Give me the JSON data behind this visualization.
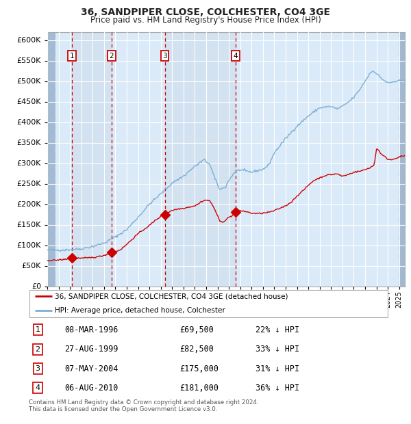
{
  "title1": "36, SANDPIPER CLOSE, COLCHESTER, CO4 3GE",
  "title2": "Price paid vs. HM Land Registry's House Price Index (HPI)",
  "ylim": [
    0,
    620000
  ],
  "yticks": [
    0,
    50000,
    100000,
    150000,
    200000,
    250000,
    300000,
    350000,
    400000,
    450000,
    500000,
    550000,
    600000
  ],
  "plot_bg": "#dbeaf8",
  "grid_color": "#ffffff",
  "red_line_color": "#cc0000",
  "blue_line_color": "#7aafd4",
  "purchases": [
    {
      "date_x": 1996.18,
      "price": 69500,
      "label": "1"
    },
    {
      "date_x": 1999.65,
      "price": 82500,
      "label": "2"
    },
    {
      "date_x": 2004.35,
      "price": 175000,
      "label": "3"
    },
    {
      "date_x": 2010.59,
      "price": 181000,
      "label": "4"
    }
  ],
  "vline_x": [
    1996.18,
    1999.65,
    2004.35,
    2010.59
  ],
  "legend_label_red": "36, SANDPIPER CLOSE, COLCHESTER, CO4 3GE (detached house)",
  "legend_label_blue": "HPI: Average price, detached house, Colchester",
  "table_rows": [
    {
      "num": "1",
      "date": "08-MAR-1996",
      "price": "£69,500",
      "pct": "22% ↓ HPI"
    },
    {
      "num": "2",
      "date": "27-AUG-1999",
      "price": "£82,500",
      "pct": "33% ↓ HPI"
    },
    {
      "num": "3",
      "date": "07-MAY-2004",
      "price": "£175,000",
      "pct": "31% ↓ HPI"
    },
    {
      "num": "4",
      "date": "06-AUG-2010",
      "price": "£181,000",
      "pct": "36% ↓ HPI"
    }
  ],
  "footer": "Contains HM Land Registry data © Crown copyright and database right 2024.\nThis data is licensed under the Open Government Licence v3.0.",
  "xmin": 1994.0,
  "xmax": 2025.5,
  "hpi_anchors": [
    [
      1994.0,
      88000
    ],
    [
      1995.0,
      88000
    ],
    [
      1996.0,
      89000
    ],
    [
      1997.0,
      91000
    ],
    [
      1998.0,
      97000
    ],
    [
      1999.0,
      105000
    ],
    [
      2000.0,
      120000
    ],
    [
      2001.0,
      138000
    ],
    [
      2002.0,
      168000
    ],
    [
      2003.0,
      200000
    ],
    [
      2004.0,
      225000
    ],
    [
      2004.5,
      238000
    ],
    [
      2005.0,
      252000
    ],
    [
      2006.0,
      268000
    ],
    [
      2007.0,
      292000
    ],
    [
      2007.8,
      308000
    ],
    [
      2008.3,
      298000
    ],
    [
      2008.8,
      260000
    ],
    [
      2009.2,
      235000
    ],
    [
      2009.7,
      242000
    ],
    [
      2010.0,
      258000
    ],
    [
      2010.5,
      278000
    ],
    [
      2011.0,
      284000
    ],
    [
      2011.5,
      280000
    ],
    [
      2012.0,
      278000
    ],
    [
      2013.0,
      285000
    ],
    [
      2013.5,
      295000
    ],
    [
      2014.0,
      325000
    ],
    [
      2015.0,
      360000
    ],
    [
      2016.0,
      390000
    ],
    [
      2017.0,
      415000
    ],
    [
      2018.0,
      435000
    ],
    [
      2019.0,
      438000
    ],
    [
      2019.5,
      432000
    ],
    [
      2020.0,
      438000
    ],
    [
      2020.5,
      448000
    ],
    [
      2021.0,
      460000
    ],
    [
      2021.5,
      478000
    ],
    [
      2022.0,
      500000
    ],
    [
      2022.5,
      522000
    ],
    [
      2022.8,
      525000
    ],
    [
      2023.0,
      518000
    ],
    [
      2023.5,
      505000
    ],
    [
      2024.0,
      495000
    ],
    [
      2024.5,
      498000
    ],
    [
      2025.0,
      500000
    ],
    [
      2025.5,
      500000
    ]
  ],
  "red_anchors": [
    [
      1994.0,
      63000
    ],
    [
      1994.5,
      63000
    ],
    [
      1995.0,
      64000
    ],
    [
      1995.5,
      65000
    ],
    [
      1996.18,
      69500
    ],
    [
      1997.0,
      68000
    ],
    [
      1997.5,
      69000
    ],
    [
      1998.0,
      70000
    ],
    [
      1998.5,
      72000
    ],
    [
      1999.0,
      75000
    ],
    [
      1999.65,
      82500
    ],
    [
      2000.0,
      84000
    ],
    [
      2000.5,
      90000
    ],
    [
      2001.0,
      102000
    ],
    [
      2001.5,
      115000
    ],
    [
      2002.0,
      128000
    ],
    [
      2002.5,
      138000
    ],
    [
      2003.0,
      148000
    ],
    [
      2003.5,
      160000
    ],
    [
      2004.0,
      170000
    ],
    [
      2004.35,
      175000
    ],
    [
      2004.8,
      182000
    ],
    [
      2005.0,
      185000
    ],
    [
      2005.5,
      188000
    ],
    [
      2006.0,
      190000
    ],
    [
      2006.5,
      193000
    ],
    [
      2007.0,
      196000
    ],
    [
      2007.3,
      200000
    ],
    [
      2007.6,
      207000
    ],
    [
      2008.0,
      210000
    ],
    [
      2008.3,
      208000
    ],
    [
      2008.6,
      196000
    ],
    [
      2008.9,
      178000
    ],
    [
      2009.2,
      158000
    ],
    [
      2009.5,
      157000
    ],
    [
      2009.8,
      163000
    ],
    [
      2010.0,
      168000
    ],
    [
      2010.3,
      172000
    ],
    [
      2010.59,
      181000
    ],
    [
      2010.8,
      183000
    ],
    [
      2011.0,
      184000
    ],
    [
      2011.3,
      183000
    ],
    [
      2011.6,
      181000
    ],
    [
      2012.0,
      178000
    ],
    [
      2012.5,
      177000
    ],
    [
      2013.0,
      178000
    ],
    [
      2013.5,
      180000
    ],
    [
      2014.0,
      184000
    ],
    [
      2014.5,
      190000
    ],
    [
      2015.0,
      196000
    ],
    [
      2015.5,
      205000
    ],
    [
      2016.0,
      220000
    ],
    [
      2016.5,
      232000
    ],
    [
      2017.0,
      246000
    ],
    [
      2017.5,
      258000
    ],
    [
      2018.0,
      264000
    ],
    [
      2018.5,
      270000
    ],
    [
      2019.0,
      272000
    ],
    [
      2019.5,
      274000
    ],
    [
      2020.0,
      268000
    ],
    [
      2020.5,
      272000
    ],
    [
      2021.0,
      278000
    ],
    [
      2021.5,
      280000
    ],
    [
      2022.0,
      284000
    ],
    [
      2022.5,
      290000
    ],
    [
      2022.8,
      295000
    ],
    [
      2023.0,
      335000
    ],
    [
      2023.2,
      332000
    ],
    [
      2023.4,
      322000
    ],
    [
      2023.6,
      318000
    ],
    [
      2024.0,
      310000
    ],
    [
      2024.3,
      308000
    ],
    [
      2024.7,
      312000
    ],
    [
      2025.0,
      315000
    ],
    [
      2025.5,
      318000
    ]
  ]
}
